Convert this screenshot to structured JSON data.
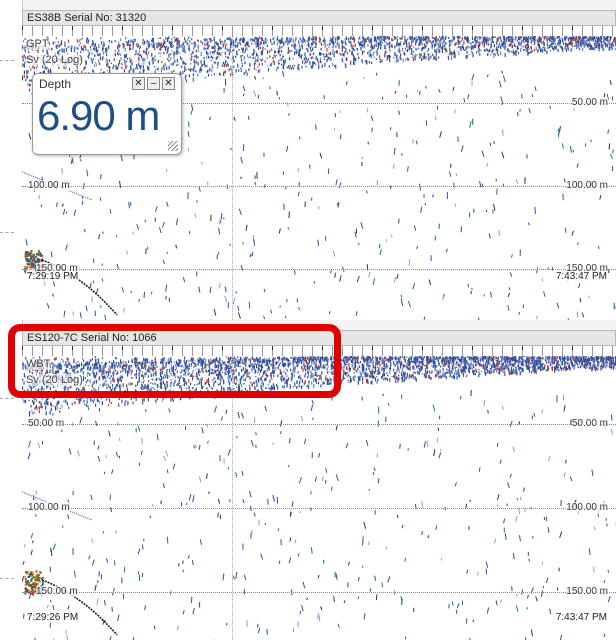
{
  "panels": [
    {
      "title": "ES38B Serial No: 31320",
      "channel_label": "GPT",
      "mode_label": "Sv (20 Log)",
      "depth_labels_left": [
        "100.00 m",
        "150.00 m"
      ],
      "depth_labels_right": [
        "50.00 m",
        "100.00 m",
        "150.00 m"
      ],
      "time_start": "7:29:19 PM",
      "time_end": "7:43:47 PM"
    },
    {
      "title": "ES120-7C Serial No: 1066",
      "channel_label": "WBT",
      "mode_label": "Sv (20 Log)",
      "depth_labels_left": [
        "50.00 m",
        "100.00 m",
        "150.00 m"
      ],
      "depth_labels_right": [
        "50.00 m",
        "100.00 m",
        "150.00 m"
      ],
      "time_start": "7:29:26 PM",
      "time_end": "7:43:47 PM"
    }
  ],
  "depth_widget": {
    "title": "Depth",
    "value": "6.90 m",
    "tools": [
      "✕",
      "–",
      "✕"
    ]
  },
  "colors": {
    "echo_blue": "#2a4ea8",
    "echo_red": "#c0392b",
    "highlight": "#e10000",
    "depth_text": "#1f4f86"
  }
}
